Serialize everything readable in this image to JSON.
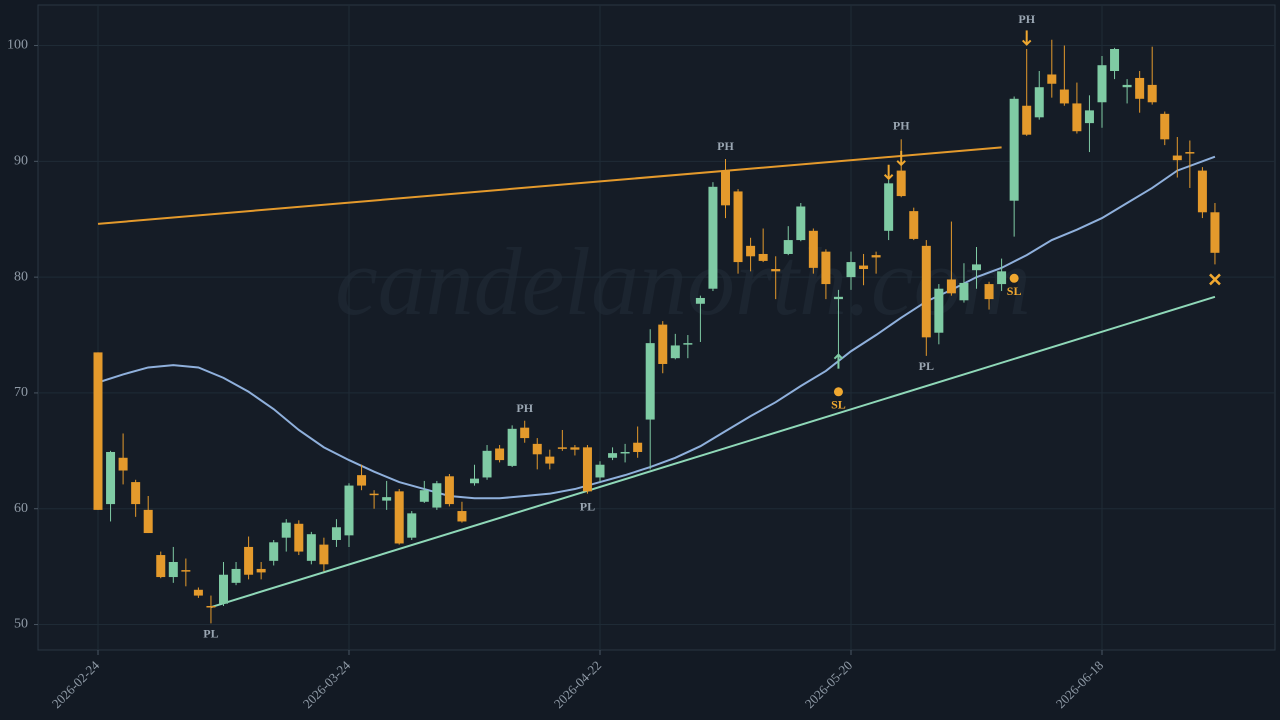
{
  "chart_data": {
    "type": "candlestick",
    "watermark": "candelanorth.com",
    "categories": [
      "2026-02-24",
      null,
      null,
      null,
      null,
      null,
      null,
      null,
      null,
      null,
      null,
      null,
      null,
      null,
      null,
      null,
      null,
      null,
      null,
      null,
      "2026-03-24",
      null,
      null,
      null,
      null,
      null,
      null,
      null,
      null,
      null,
      null,
      null,
      null,
      null,
      null,
      null,
      null,
      null,
      null,
      null,
      "2026-04-22",
      null,
      null,
      null,
      null,
      null,
      null,
      null,
      null,
      null,
      null,
      null,
      null,
      null,
      null,
      null,
      null,
      null,
      null,
      null,
      "2026-05-20",
      null,
      null,
      null,
      null,
      null,
      null,
      null,
      null,
      null,
      null,
      null,
      null,
      null,
      null,
      null,
      null,
      null,
      null,
      null,
      "2026-06-18",
      null,
      null,
      null,
      null,
      null,
      null,
      null,
      null,
      null
    ],
    "open": [
      73.5,
      60.4,
      64.4,
      62.3,
      59.9,
      56.0,
      54.1,
      54.7,
      53.0,
      51.6,
      51.8,
      53.6,
      56.7,
      54.8,
      55.5,
      57.5,
      58.7,
      55.5,
      56.9,
      57.3,
      57.7,
      62.9,
      61.3,
      60.7,
      61.5,
      57.5,
      60.6,
      60.1,
      62.8,
      59.8,
      62.2,
      62.7,
      65.2,
      63.7,
      67.0,
      65.6,
      64.5,
      65.3,
      65.3,
      65.3,
      62.7,
      64.4,
      64.85,
      65.7,
      67.7,
      75.9,
      73.0,
      74.2,
      77.7,
      79.0,
      89.2,
      87.4,
      82.7,
      82.0,
      80.7,
      82.0,
      83.2,
      84.0,
      82.2,
      78.1,
      80.0,
      81.0,
      81.9,
      84.0,
      89.2,
      85.7,
      82.7,
      75.2,
      79.8,
      78.0,
      80.6,
      79.4,
      79.4,
      86.6,
      94.8,
      93.8,
      97.5,
      96.2,
      95.0,
      93.3,
      95.1,
      97.8,
      96.4,
      97.2,
      96.6,
      94.1,
      90.5,
      90.8,
      89.2,
      85.6
    ],
    "high": [
      73.5,
      65.0,
      66.5,
      62.5,
      61.1,
      56.3,
      56.7,
      55.7,
      53.2,
      52.5,
      55.4,
      55.4,
      57.6,
      55.4,
      57.3,
      59.1,
      59.0,
      58.0,
      57.5,
      59.1,
      62.2,
      63.8,
      61.6,
      62.4,
      61.7,
      59.8,
      62.4,
      62.4,
      63.0,
      60.6,
      63.8,
      65.5,
      65.5,
      67.2,
      67.6,
      66.1,
      65.1,
      66.8,
      65.5,
      65.5,
      64.1,
      65.3,
      65.6,
      67.1,
      75.5,
      76.2,
      75.1,
      75.0,
      78.4,
      88.2,
      90.2,
      87.6,
      83.4,
      84.2,
      81.8,
      84.4,
      86.4,
      84.2,
      82.4,
      78.9,
      82.2,
      82.0,
      82.2,
      88.4,
      91.9,
      86.0,
      83.2,
      79.4,
      84.8,
      81.2,
      82.6,
      79.6,
      81.6,
      95.6,
      99.7,
      97.8,
      100.5,
      100.0,
      96.8,
      95.7,
      99.1,
      99.8,
      97.1,
      97.8,
      99.9,
      94.3,
      92.1,
      91.8,
      89.5,
      86.4
    ],
    "low": [
      59.9,
      58.9,
      62.1,
      59.3,
      57.9,
      54.0,
      53.6,
      53.3,
      52.3,
      50.1,
      51.6,
      53.4,
      53.9,
      53.9,
      55.1,
      56.3,
      56.0,
      55.2,
      54.6,
      56.7,
      56.7,
      61.6,
      60.0,
      59.9,
      56.9,
      57.3,
      60.5,
      59.9,
      60.2,
      58.8,
      62.0,
      62.5,
      64.0,
      63.6,
      65.7,
      63.4,
      63.4,
      65.0,
      64.6,
      61.3,
      62.3,
      64.2,
      64.0,
      64.4,
      63.4,
      71.7,
      72.9,
      73.0,
      74.4,
      78.8,
      85.1,
      80.3,
      80.5,
      81.3,
      78.1,
      81.9,
      83.1,
      80.3,
      78.1,
      73.3,
      78.9,
      79.3,
      80.3,
      83.2,
      86.9,
      83.2,
      73.2,
      74.2,
      78.4,
      77.8,
      79.0,
      77.2,
      78.8,
      83.5,
      92.2,
      93.6,
      95.5,
      94.8,
      92.4,
      90.8,
      92.9,
      97.1,
      95.0,
      94.2,
      94.9,
      91.4,
      88.6,
      87.7,
      85.1,
      81.1
    ],
    "close": [
      59.9,
      64.9,
      63.3,
      60.4,
      57.9,
      54.1,
      55.4,
      54.6,
      52.5,
      51.5,
      54.3,
      54.8,
      54.3,
      54.5,
      57.1,
      58.8,
      56.3,
      57.8,
      55.2,
      58.4,
      62.0,
      62.0,
      61.2,
      61.0,
      57.0,
      59.6,
      61.6,
      62.2,
      60.4,
      58.9,
      62.6,
      65.0,
      64.2,
      66.9,
      66.1,
      64.7,
      63.9,
      65.2,
      65.1,
      61.5,
      63.8,
      64.8,
      64.9,
      64.9,
      74.3,
      72.5,
      74.1,
      74.3,
      78.2,
      87.8,
      86.2,
      81.3,
      81.8,
      81.4,
      80.5,
      83.2,
      86.1,
      80.8,
      79.4,
      78.3,
      81.3,
      80.7,
      81.7,
      88.1,
      87.0,
      83.3,
      74.8,
      79.0,
      78.6,
      79.5,
      81.1,
      78.1,
      80.5,
      95.4,
      92.3,
      96.4,
      96.7,
      95.0,
      92.6,
      94.4,
      98.3,
      99.7,
      96.6,
      95.4,
      95.1,
      91.9,
      90.1,
      90.7,
      85.6,
      82.1
    ],
    "up_color": "#7fcba4",
    "down_color": "#e49a2c",
    "ylim": [
      47.8,
      103.5
    ],
    "yticks": [
      50,
      60,
      70,
      80,
      90,
      100
    ],
    "grid": true,
    "ma": {
      "color": "#8fb0dc",
      "x": [
        0,
        2,
        4,
        6,
        8,
        10,
        12,
        14,
        16,
        18,
        20,
        22,
        24,
        26,
        28,
        30,
        32,
        34,
        36,
        38,
        40,
        42,
        44,
        46,
        48,
        50,
        52,
        54,
        56,
        58,
        60,
        62,
        64,
        66,
        68,
        70,
        72,
        74,
        76,
        78,
        80,
        82,
        84,
        86,
        89
      ],
      "values": [
        70.9,
        71.6,
        72.2,
        72.4,
        72.2,
        71.3,
        70.1,
        68.6,
        66.8,
        65.3,
        64.2,
        63.2,
        62.3,
        61.7,
        61.1,
        60.9,
        60.9,
        61.1,
        61.3,
        61.7,
        62.3,
        62.9,
        63.6,
        64.4,
        65.4,
        66.7,
        68.0,
        69.2,
        70.6,
        71.9,
        73.6,
        75.0,
        76.5,
        77.9,
        78.9,
        80.0,
        80.8,
        81.9,
        83.2,
        84.1,
        85.1,
        86.4,
        87.7,
        89.2,
        90.4
      ]
    },
    "lines": [
      {
        "color": "#e49a2c",
        "x": [
          0,
          72
        ],
        "values": [
          84.6,
          91.2
        ]
      },
      {
        "color": "#8fd8b8",
        "x": [
          9,
          89
        ],
        "values": [
          51.5,
          78.3
        ]
      }
    ],
    "annotations": [
      {
        "text": "PL",
        "x": 9,
        "y": 49.1
      },
      {
        "text": "PH",
        "x": 34,
        "y": 68.6
      },
      {
        "text": "PL",
        "x": 39,
        "y": 60.1
      },
      {
        "text": "PH",
        "x": 50,
        "y": 91.2
      },
      {
        "text": "PH",
        "x": 64,
        "y": 93.0
      },
      {
        "text": "PL",
        "x": 66,
        "y": 72.2
      },
      {
        "text": "PH",
        "x": 74,
        "y": 102.2
      }
    ],
    "signals": [
      {
        "x": 59,
        "y": 72.7,
        "dir": "up",
        "color": "#7fcba4"
      },
      {
        "x": 63,
        "y": 89.1,
        "dir": "down",
        "color": "#f0a830"
      },
      {
        "x": 64,
        "y": 90.3,
        "dir": "down",
        "color": "#f0a830"
      },
      {
        "x": 74,
        "y": 100.7,
        "dir": "down",
        "color": "#f0a830"
      }
    ],
    "stops": [
      {
        "x": 59,
        "y": 70.1,
        "label": "SL"
      },
      {
        "x": 73,
        "y": 79.9,
        "label": "SL"
      }
    ],
    "stop_color": "#f0a830",
    "exit": {
      "x": 89,
      "y": 79.8,
      "color": "#f0a830"
    }
  }
}
